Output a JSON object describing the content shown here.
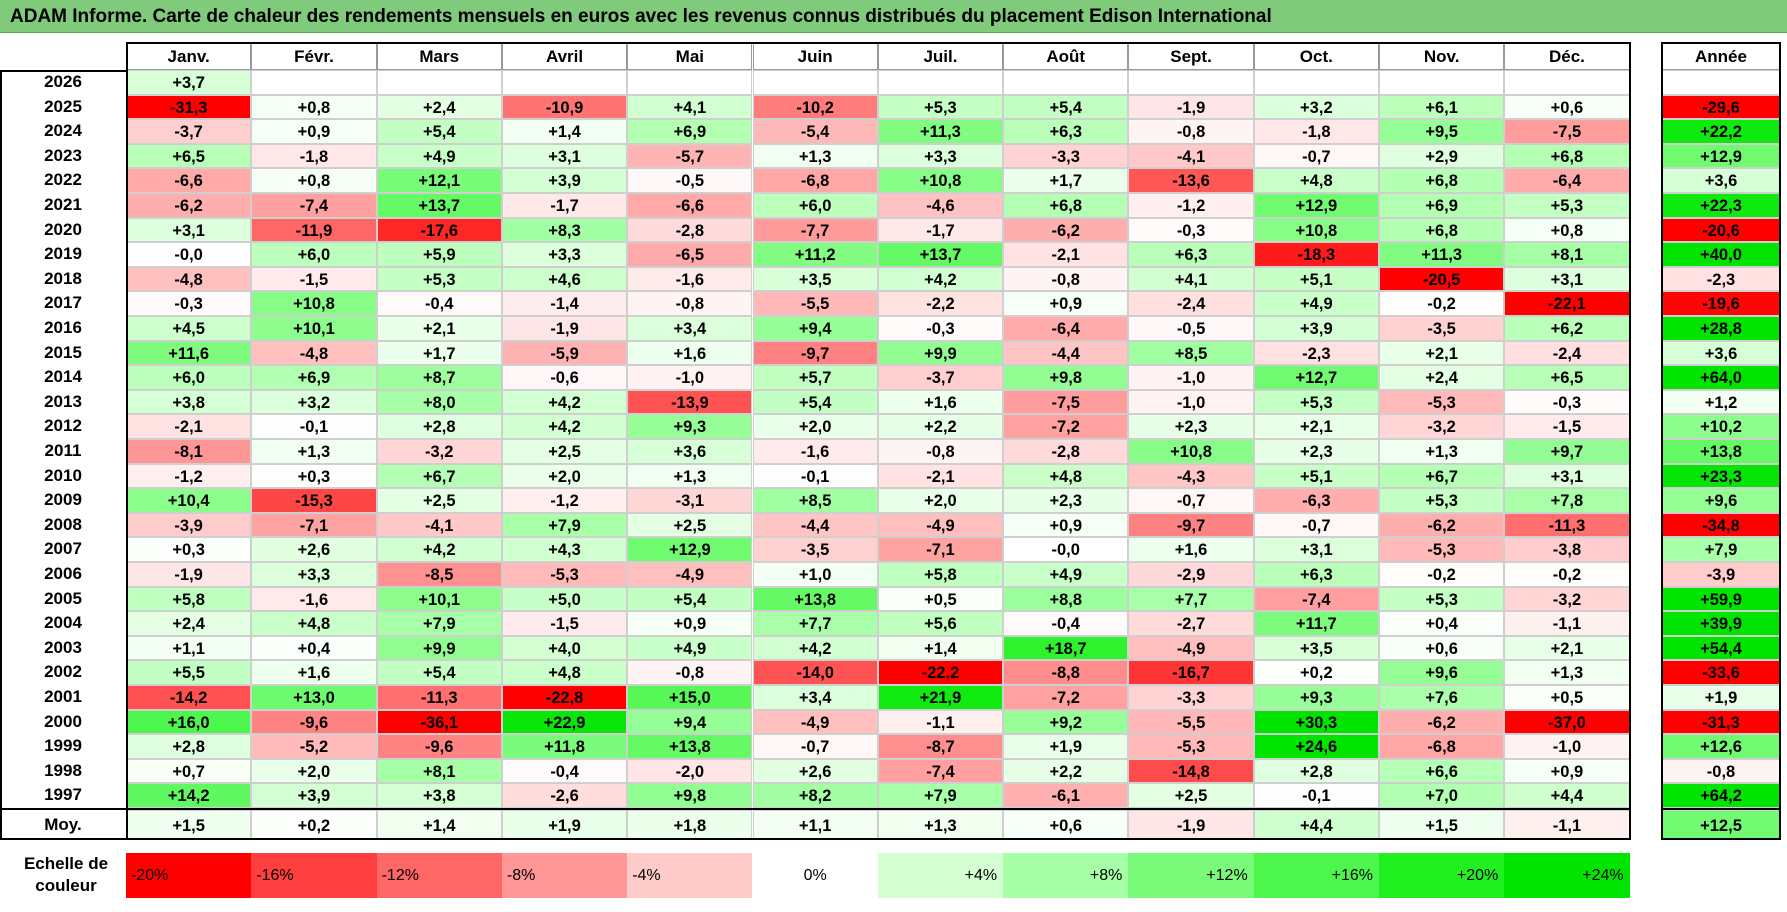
{
  "title": "ADAM Informe. Carte de chaleur des rendements mensuels en euros avec les revenus connus distribués du placement Edison International",
  "chart_data": {
    "type": "heatmap",
    "title": "ADAM Informe. Carte de chaleur des rendements mensuels en euros avec les revenus connus distribués du placement Edison International",
    "columns": [
      "Janv.",
      "Févr.",
      "Mars",
      "Avril",
      "Mai",
      "Juin",
      "Juil.",
      "Août",
      "Sept.",
      "Oct.",
      "Nov.",
      "Déc."
    ],
    "annual_header": "Année",
    "rows": [
      {
        "year": "2026",
        "values": [
          "+3,7",
          "",
          "",
          "",
          "",
          "",
          "",
          "",
          "",
          "",
          "",
          ""
        ],
        "annual": ""
      },
      {
        "year": "2025",
        "values": [
          "-31,3",
          "+0,8",
          "+2,4",
          "-10,9",
          "+4,1",
          "-10,2",
          "+5,3",
          "+5,4",
          "-1,9",
          "+3,2",
          "+6,1",
          "+0,6"
        ],
        "annual": "-29,6"
      },
      {
        "year": "2024",
        "values": [
          "-3,7",
          "+0,9",
          "+5,4",
          "+1,4",
          "+6,9",
          "-5,4",
          "+11,3",
          "+6,3",
          "-0,8",
          "-1,8",
          "+9,5",
          "-7,5"
        ],
        "annual": "+22,2"
      },
      {
        "year": "2023",
        "values": [
          "+6,5",
          "-1,8",
          "+4,9",
          "+3,1",
          "-5,7",
          "+1,3",
          "+3,3",
          "-3,3",
          "-4,1",
          "-0,7",
          "+2,9",
          "+6,8"
        ],
        "annual": "+12,9"
      },
      {
        "year": "2022",
        "values": [
          "-6,6",
          "+0,8",
          "+12,1",
          "+3,9",
          "-0,5",
          "-6,8",
          "+10,8",
          "+1,7",
          "-13,6",
          "+4,8",
          "+6,8",
          "-6,4"
        ],
        "annual": "+3,6"
      },
      {
        "year": "2021",
        "values": [
          "-6,2",
          "-7,4",
          "+13,7",
          "-1,7",
          "-6,6",
          "+6,0",
          "-4,6",
          "+6,8",
          "-1,2",
          "+12,9",
          "+6,9",
          "+5,3"
        ],
        "annual": "+22,3"
      },
      {
        "year": "2020",
        "values": [
          "+3,1",
          "-11,9",
          "-17,6",
          "+8,3",
          "-2,8",
          "-7,7",
          "-1,7",
          "-6,2",
          "-0,3",
          "+10,8",
          "+6,8",
          "+0,8"
        ],
        "annual": "-20,6"
      },
      {
        "year": "2019",
        "values": [
          "-0,0",
          "+6,0",
          "+5,9",
          "+3,3",
          "-6,5",
          "+11,2",
          "+13,7",
          "-2,1",
          "+6,3",
          "-18,3",
          "+11,3",
          "+8,1"
        ],
        "annual": "+40,0"
      },
      {
        "year": "2018",
        "values": [
          "-4,8",
          "-1,5",
          "+5,3",
          "+4,6",
          "-1,6",
          "+3,5",
          "+4,2",
          "-0,8",
          "+4,1",
          "+5,1",
          "-20,5",
          "+3,1"
        ],
        "annual": "-2,3"
      },
      {
        "year": "2017",
        "values": [
          "-0,3",
          "+10,8",
          "-0,4",
          "-1,4",
          "-0,8",
          "-5,5",
          "-2,2",
          "+0,9",
          "-2,4",
          "+4,9",
          "-0,2",
          "-22,1"
        ],
        "annual": "-19,6"
      },
      {
        "year": "2016",
        "values": [
          "+4,5",
          "+10,1",
          "+2,1",
          "-1,9",
          "+3,4",
          "+9,4",
          "-0,3",
          "-6,4",
          "-0,5",
          "+3,9",
          "-3,5",
          "+6,2"
        ],
        "annual": "+28,8"
      },
      {
        "year": "2015",
        "values": [
          "+11,6",
          "-4,8",
          "+1,7",
          "-5,9",
          "+1,6",
          "-9,7",
          "+9,9",
          "-4,4",
          "+8,5",
          "-2,3",
          "+2,1",
          "-2,4"
        ],
        "annual": "+3,6"
      },
      {
        "year": "2014",
        "values": [
          "+6,0",
          "+6,9",
          "+8,7",
          "-0,6",
          "-1,0",
          "+5,7",
          "-3,7",
          "+9,8",
          "-1,0",
          "+12,7",
          "+2,4",
          "+6,5"
        ],
        "annual": "+64,0"
      },
      {
        "year": "2013",
        "values": [
          "+3,8",
          "+3,2",
          "+8,0",
          "+4,2",
          "-13,9",
          "+5,4",
          "+1,6",
          "-7,5",
          "-1,0",
          "+5,3",
          "-5,3",
          "-0,3"
        ],
        "annual": "+1,2"
      },
      {
        "year": "2012",
        "values": [
          "-2,1",
          "-0,1",
          "+2,8",
          "+4,2",
          "+9,3",
          "+2,0",
          "+2,2",
          "-7,2",
          "+2,3",
          "+2,1",
          "-3,2",
          "-1,5"
        ],
        "annual": "+10,2"
      },
      {
        "year": "2011",
        "values": [
          "-8,1",
          "+1,3",
          "-3,2",
          "+2,5",
          "+3,6",
          "-1,6",
          "-0,8",
          "-2,8",
          "+10,8",
          "+2,3",
          "+1,3",
          "+9,7"
        ],
        "annual": "+13,8"
      },
      {
        "year": "2010",
        "values": [
          "-1,2",
          "+0,3",
          "+6,7",
          "+2,0",
          "+1,3",
          "-0,1",
          "-2,1",
          "+4,8",
          "-4,3",
          "+5,1",
          "+6,7",
          "+3,1"
        ],
        "annual": "+23,3"
      },
      {
        "year": "2009",
        "values": [
          "+10,4",
          "-15,3",
          "+2,5",
          "-1,2",
          "-3,1",
          "+8,5",
          "+2,0",
          "+2,3",
          "-0,7",
          "-6,3",
          "+5,3",
          "+7,8"
        ],
        "annual": "+9,6"
      },
      {
        "year": "2008",
        "values": [
          "-3,9",
          "-7,1",
          "-4,1",
          "+7,9",
          "+2,5",
          "-4,4",
          "-4,9",
          "+0,9",
          "-9,7",
          "-0,7",
          "-6,2",
          "-11,3"
        ],
        "annual": "-34,8"
      },
      {
        "year": "2007",
        "values": [
          "+0,3",
          "+2,6",
          "+4,2",
          "+4,3",
          "+12,9",
          "-3,5",
          "-7,1",
          "-0,0",
          "+1,6",
          "+3,1",
          "-5,3",
          "-3,8"
        ],
        "annual": "+7,9"
      },
      {
        "year": "2006",
        "values": [
          "-1,9",
          "+3,3",
          "-8,5",
          "-5,3",
          "-4,9",
          "+1,0",
          "+5,8",
          "+4,9",
          "-2,9",
          "+6,3",
          "-0,2",
          "-0,2"
        ],
        "annual": "-3,9"
      },
      {
        "year": "2005",
        "values": [
          "+5,8",
          "-1,6",
          "+10,1",
          "+5,0",
          "+5,4",
          "+13,8",
          "+0,5",
          "+8,8",
          "+7,7",
          "-7,4",
          "+5,3",
          "-3,2"
        ],
        "annual": "+59,9"
      },
      {
        "year": "2004",
        "values": [
          "+2,4",
          "+4,8",
          "+7,9",
          "-1,5",
          "+0,9",
          "+7,7",
          "+5,6",
          "-0,4",
          "-2,7",
          "+11,7",
          "+0,4",
          "-1,1"
        ],
        "annual": "+39,9"
      },
      {
        "year": "2003",
        "values": [
          "+1,1",
          "+0,4",
          "+9,9",
          "+4,0",
          "+4,9",
          "+4,2",
          "+1,4",
          "+18,7",
          "-4,9",
          "+3,5",
          "+0,6",
          "+2,1"
        ],
        "annual": "+54,4"
      },
      {
        "year": "2002",
        "values": [
          "+5,5",
          "+1,6",
          "+5,4",
          "+4,8",
          "-0,8",
          "-14,0",
          "-22,2",
          "-8,8",
          "-16,7",
          "+0,2",
          "+9,6",
          "+1,3"
        ],
        "annual": "-33,6"
      },
      {
        "year": "2001",
        "values": [
          "-14,2",
          "+13,0",
          "-11,3",
          "-22,8",
          "+15,0",
          "+3,4",
          "+21,9",
          "-7,2",
          "-3,3",
          "+9,3",
          "+7,6",
          "+0,5"
        ],
        "annual": "+1,9"
      },
      {
        "year": "2000",
        "values": [
          "+16,0",
          "-9,6",
          "-36,1",
          "+22,9",
          "+9,4",
          "-4,9",
          "-1,1",
          "+9,2",
          "-5,5",
          "+30,3",
          "-6,2",
          "-37,0"
        ],
        "annual": "-31,3"
      },
      {
        "year": "1999",
        "values": [
          "+2,8",
          "-5,2",
          "-9,6",
          "+11,8",
          "+13,8",
          "-0,7",
          "-8,7",
          "+1,9",
          "-5,3",
          "+24,6",
          "-6,8",
          "-1,0"
        ],
        "annual": "+12,6"
      },
      {
        "year": "1998",
        "values": [
          "+0,7",
          "+2,0",
          "+8,1",
          "-0,4",
          "-2,0",
          "+2,6",
          "-7,4",
          "+2,2",
          "-14,8",
          "+2,8",
          "+6,6",
          "+0,9"
        ],
        "annual": "-0,8"
      },
      {
        "year": "1997",
        "values": [
          "+14,2",
          "+3,9",
          "+3,8",
          "-2,6",
          "+9,8",
          "+8,2",
          "+7,9",
          "-6,1",
          "+2,5",
          "-0,1",
          "+7,0",
          "+4,4"
        ],
        "annual": "+64,2"
      }
    ],
    "average": {
      "label": "Moy.",
      "values": [
        "+1,5",
        "+0,2",
        "+1,4",
        "+1,9",
        "+1,8",
        "+1,1",
        "+1,3",
        "+0,6",
        "-1,9",
        "+4,4",
        "+1,5",
        "-1,1"
      ],
      "annual": "+12,5"
    },
    "legend": {
      "label": "Echelle de couleur",
      "steps": [
        {
          "label": "-20%",
          "value": -20,
          "color": "#ff0000"
        },
        {
          "label": "-16%",
          "value": -16,
          "color": "#ff3f3f"
        },
        {
          "label": "-12%",
          "value": -12,
          "color": "#ff6666"
        },
        {
          "label": "-8%",
          "value": -8,
          "color": "#ff9797"
        },
        {
          "label": "-4%",
          "value": -4,
          "color": "#ffcaca"
        },
        {
          "label": "0%",
          "value": 0,
          "color": "#ffffff"
        },
        {
          "label": "+4%",
          "value": 4,
          "color": "#d3ffd3"
        },
        {
          "label": "+8%",
          "value": 8,
          "color": "#a6ffa6"
        },
        {
          "label": "+12%",
          "value": 12,
          "color": "#79fb79"
        },
        {
          "label": "+16%",
          "value": 16,
          "color": "#4cf64c"
        },
        {
          "label": "+20%",
          "value": 20,
          "color": "#20f020"
        },
        {
          "label": "+24%",
          "value": 24,
          "color": "#00e400"
        }
      ]
    }
  }
}
